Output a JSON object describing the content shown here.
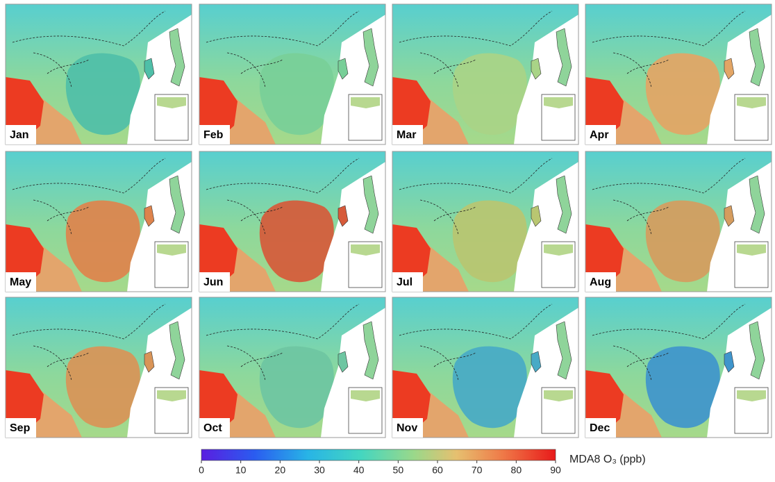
{
  "panels": [
    {
      "label": "Jan",
      "color": "#4fbfa8"
    },
    {
      "label": "Feb",
      "color": "#78cf98"
    },
    {
      "label": "Mar",
      "color": "#a9d487"
    },
    {
      "label": "Apr",
      "color": "#e3a565"
    },
    {
      "label": "May",
      "color": "#de834c"
    },
    {
      "label": "Jun",
      "color": "#d65a3a"
    },
    {
      "label": "Jul",
      "color": "#b9c671"
    },
    {
      "label": "Aug",
      "color": "#d59c5e"
    },
    {
      "label": "Sep",
      "color": "#d99457"
    },
    {
      "label": "Oct",
      "color": "#6ec6a2"
    },
    {
      "label": "Nov",
      "color": "#48aac6"
    },
    {
      "label": "Dec",
      "color": "#3f95cc"
    }
  ],
  "colorbar": {
    "label": "MDA8 O₃ (ppb)",
    "lim": [
      0,
      90
    ],
    "ticks": [
      0,
      10,
      20,
      30,
      40,
      50,
      60,
      70,
      80,
      90
    ]
  }
}
